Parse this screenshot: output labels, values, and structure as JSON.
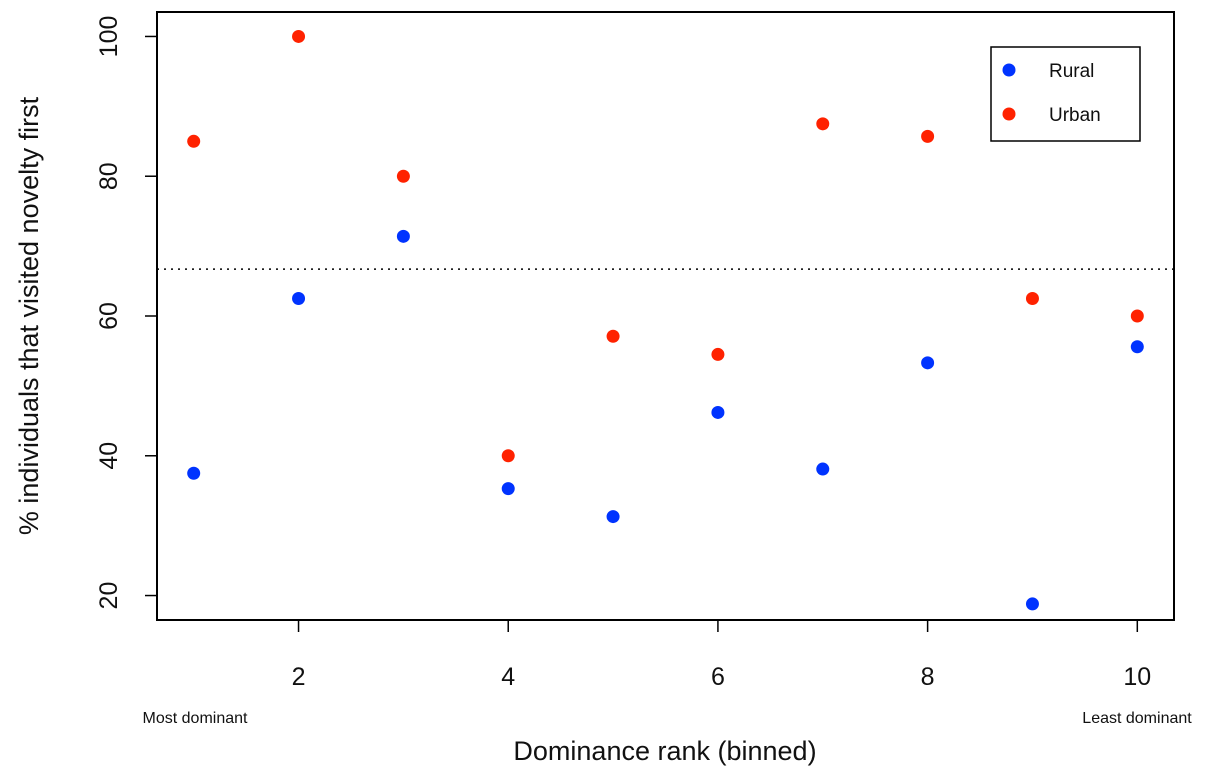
{
  "chart_data": {
    "type": "scatter",
    "title": "",
    "xlabel": "Dominance rank (binned)",
    "ylabel": "% individuals that visited novelty first",
    "xlim": [
      0.65,
      10.35
    ],
    "ylim": [
      16.5,
      103.5
    ],
    "x_ticks": [
      2,
      4,
      6,
      8,
      10
    ],
    "y_ticks": [
      20,
      40,
      60,
      80,
      100
    ],
    "grid": false,
    "legend_position": "top-right",
    "x_annotations": {
      "left": "Most dominant",
      "right": "Least dominant"
    },
    "reference_line": {
      "y": 66.7,
      "style": "dotted"
    },
    "series": [
      {
        "name": "Rural",
        "color": "#0033ff",
        "x": [
          1,
          2,
          3,
          4,
          5,
          6,
          7,
          8,
          9,
          10
        ],
        "y": [
          37.5,
          62.5,
          71.4,
          35.3,
          31.3,
          46.2,
          38.1,
          53.3,
          18.8,
          55.6
        ]
      },
      {
        "name": "Urban",
        "color": "#ff2200",
        "x": [
          1,
          2,
          3,
          4,
          5,
          6,
          7,
          8,
          9,
          10
        ],
        "y": [
          85.0,
          100.0,
          80.0,
          40.0,
          57.1,
          54.5,
          87.5,
          85.7,
          62.5,
          60.0
        ]
      }
    ]
  }
}
